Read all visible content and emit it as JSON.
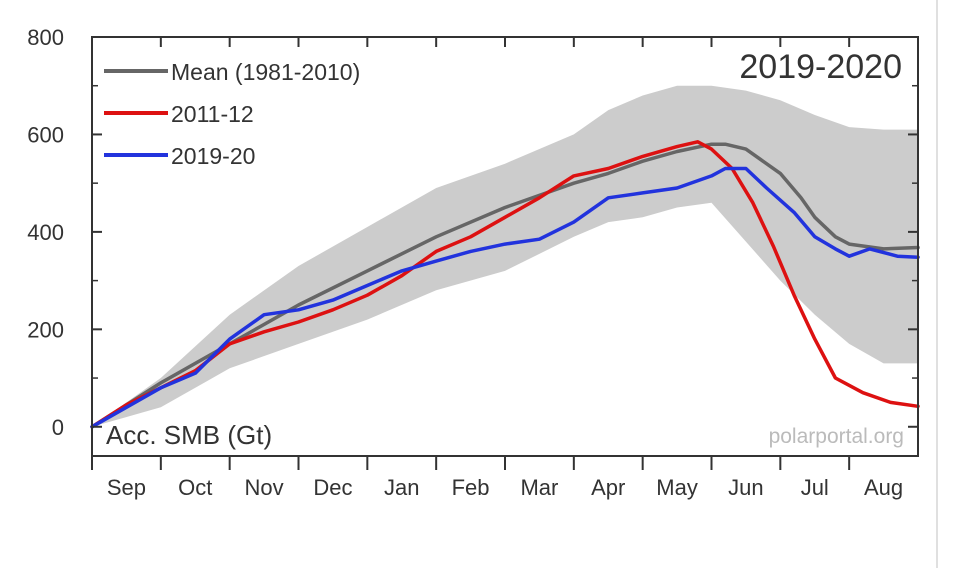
{
  "chart_data": {
    "type": "line",
    "title": "2019-2020",
    "ylabel": "Acc. SMB (Gt)",
    "watermark": "polarportal.org",
    "months": [
      "Sep",
      "Oct",
      "Nov",
      "Dec",
      "Jan",
      "Feb",
      "Mar",
      "Apr",
      "May",
      "Jun",
      "Jul",
      "Aug"
    ],
    "xlim": [
      0,
      12
    ],
    "ylim": [
      -60,
      800
    ],
    "yticks": [
      0,
      200,
      400,
      600,
      800
    ],
    "grid": false,
    "legend_position": "top-left",
    "band": {
      "x": [
        0,
        1,
        2,
        3,
        4,
        5,
        6,
        7,
        7.5,
        8,
        8.5,
        9,
        9.5,
        10,
        10.5,
        11,
        11.5,
        12
      ],
      "upper": [
        0,
        100,
        230,
        330,
        410,
        490,
        540,
        600,
        650,
        680,
        700,
        700,
        690,
        670,
        640,
        615,
        610,
        610
      ],
      "lower": [
        0,
        40,
        120,
        170,
        220,
        280,
        320,
        390,
        420,
        430,
        450,
        460,
        380,
        300,
        230,
        170,
        130,
        130
      ]
    },
    "series": [
      {
        "name": "Mean (1981-2010)",
        "color": "#666666",
        "x": [
          0,
          1,
          2,
          3,
          4,
          5,
          6,
          7,
          7.5,
          8,
          8.5,
          9,
          9.2,
          9.5,
          10,
          10.3,
          10.5,
          10.8,
          11,
          11.5,
          12
        ],
        "y": [
          0,
          90,
          170,
          250,
          320,
          390,
          450,
          500,
          520,
          545,
          565,
          580,
          580,
          570,
          520,
          470,
          430,
          390,
          375,
          365,
          368
        ]
      },
      {
        "name": "2011-12",
        "color": "#dd1111",
        "x": [
          0,
          0.5,
          1,
          1.5,
          2,
          2.5,
          3,
          3.5,
          4,
          4.5,
          5,
          5.5,
          6,
          6.5,
          7,
          7.5,
          8,
          8.5,
          8.8,
          9,
          9.3,
          9.6,
          9.9,
          10.2,
          10.5,
          10.8,
          11.2,
          11.6,
          12
        ],
        "y": [
          0,
          45,
          80,
          115,
          170,
          195,
          215,
          240,
          270,
          310,
          360,
          390,
          430,
          470,
          515,
          530,
          555,
          575,
          585,
          570,
          530,
          460,
          370,
          270,
          180,
          100,
          70,
          50,
          42
        ]
      },
      {
        "name": "2019-20",
        "color": "#2233dd",
        "x": [
          0,
          0.5,
          1,
          1.5,
          2,
          2.5,
          3,
          3.5,
          4,
          4.5,
          5,
          5.5,
          6,
          6.5,
          7,
          7.5,
          8,
          8.5,
          9,
          9.2,
          9.5,
          9.8,
          10.2,
          10.5,
          10.8,
          11,
          11.3,
          11.7,
          12
        ],
        "y": [
          0,
          40,
          80,
          110,
          180,
          230,
          240,
          260,
          290,
          320,
          340,
          360,
          375,
          385,
          420,
          470,
          480,
          490,
          515,
          530,
          530,
          490,
          440,
          390,
          365,
          350,
          365,
          350,
          348
        ]
      }
    ]
  }
}
